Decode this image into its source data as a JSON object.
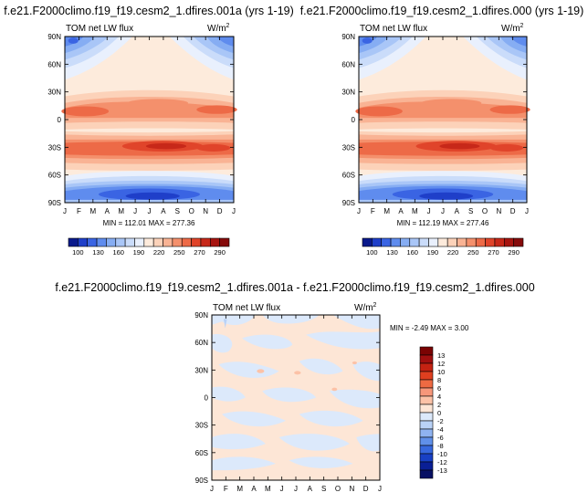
{
  "chart_data": [
    {
      "type": "heatmap",
      "title": "f.e21.F2000climo.f19_f19.cesm2_1.dfires.001a (yrs 1-19)",
      "left_label": "TOM net LW flux",
      "units": "W/m",
      "units_sup": "2",
      "stats": "MIN = 112.01 MAX = 277.36",
      "min": 112.01,
      "max": 277.36,
      "x_ticks": [
        "J",
        "F",
        "M",
        "A",
        "M",
        "J",
        "J",
        "A",
        "S",
        "O",
        "N",
        "D",
        "J"
      ],
      "y_ticks": [
        "90N",
        "60N",
        "30N",
        "0",
        "30S",
        "60S",
        "90S"
      ],
      "colorbar_labels": [
        "100",
        "130",
        "160",
        "190",
        "220",
        "250",
        "270",
        "290"
      ]
    },
    {
      "type": "heatmap",
      "title": "f.e21.F2000climo.f19_f19.cesm2_1.dfires.000 (yrs 1-19)",
      "left_label": "TOM net LW flux",
      "units": "W/m",
      "units_sup": "2",
      "stats": "MIN = 112.19 MAX = 277.46",
      "min": 112.19,
      "max": 277.46,
      "x_ticks": [
        "J",
        "F",
        "M",
        "A",
        "M",
        "J",
        "J",
        "A",
        "S",
        "O",
        "N",
        "D",
        "J"
      ],
      "y_ticks": [
        "90N",
        "60N",
        "30N",
        "0",
        "30S",
        "60S",
        "90S"
      ],
      "colorbar_labels": [
        "100",
        "130",
        "160",
        "190",
        "220",
        "250",
        "270",
        "290"
      ]
    },
    {
      "type": "heatmap",
      "title": "f.e21.F2000climo.f19_f19.cesm2_1.dfires.001a - f.e21.F2000climo.f19_f19.cesm2_1.dfires.000",
      "left_label": "TOM net LW flux",
      "units": "W/m",
      "units_sup": "2",
      "stats": "MIN =  -2.49 MAX =   3.00",
      "min": -2.49,
      "max": 3.0,
      "x_ticks": [
        "J",
        "F",
        "M",
        "A",
        "M",
        "J",
        "J",
        "A",
        "S",
        "O",
        "N",
        "D",
        "J"
      ],
      "y_ticks": [
        "90N",
        "60N",
        "30N",
        "0",
        "30S",
        "60S",
        "90S"
      ],
      "colorbar_labels": [
        "13",
        "12",
        "10",
        "8",
        "6",
        "4",
        "2",
        "0",
        "-2",
        "-4",
        "-6",
        "-8",
        "-10",
        "-12",
        "-13"
      ]
    }
  ],
  "colors": {
    "abs_scale": [
      "#0a1a8c",
      "#1f3fc9",
      "#3a64e3",
      "#5f8cee",
      "#86adf3",
      "#a9c6f7",
      "#cadcfa",
      "#e9f0fd",
      "#fdebdc",
      "#fcd2b9",
      "#f9b394",
      "#f4906c",
      "#ed6a47",
      "#e0442a",
      "#c72819",
      "#a71510",
      "#860b0b"
    ],
    "diff_scale": [
      "#7a0303",
      "#a00f0f",
      "#c42212",
      "#df3f1f",
      "#ee6a42",
      "#f7977a",
      "#fcc2a7",
      "#fde6d6",
      "#dce9fb",
      "#b9d2f7",
      "#8fb3f1",
      "#6090ea",
      "#3768de",
      "#1840c4",
      "#0a1f95",
      "#081064"
    ]
  }
}
